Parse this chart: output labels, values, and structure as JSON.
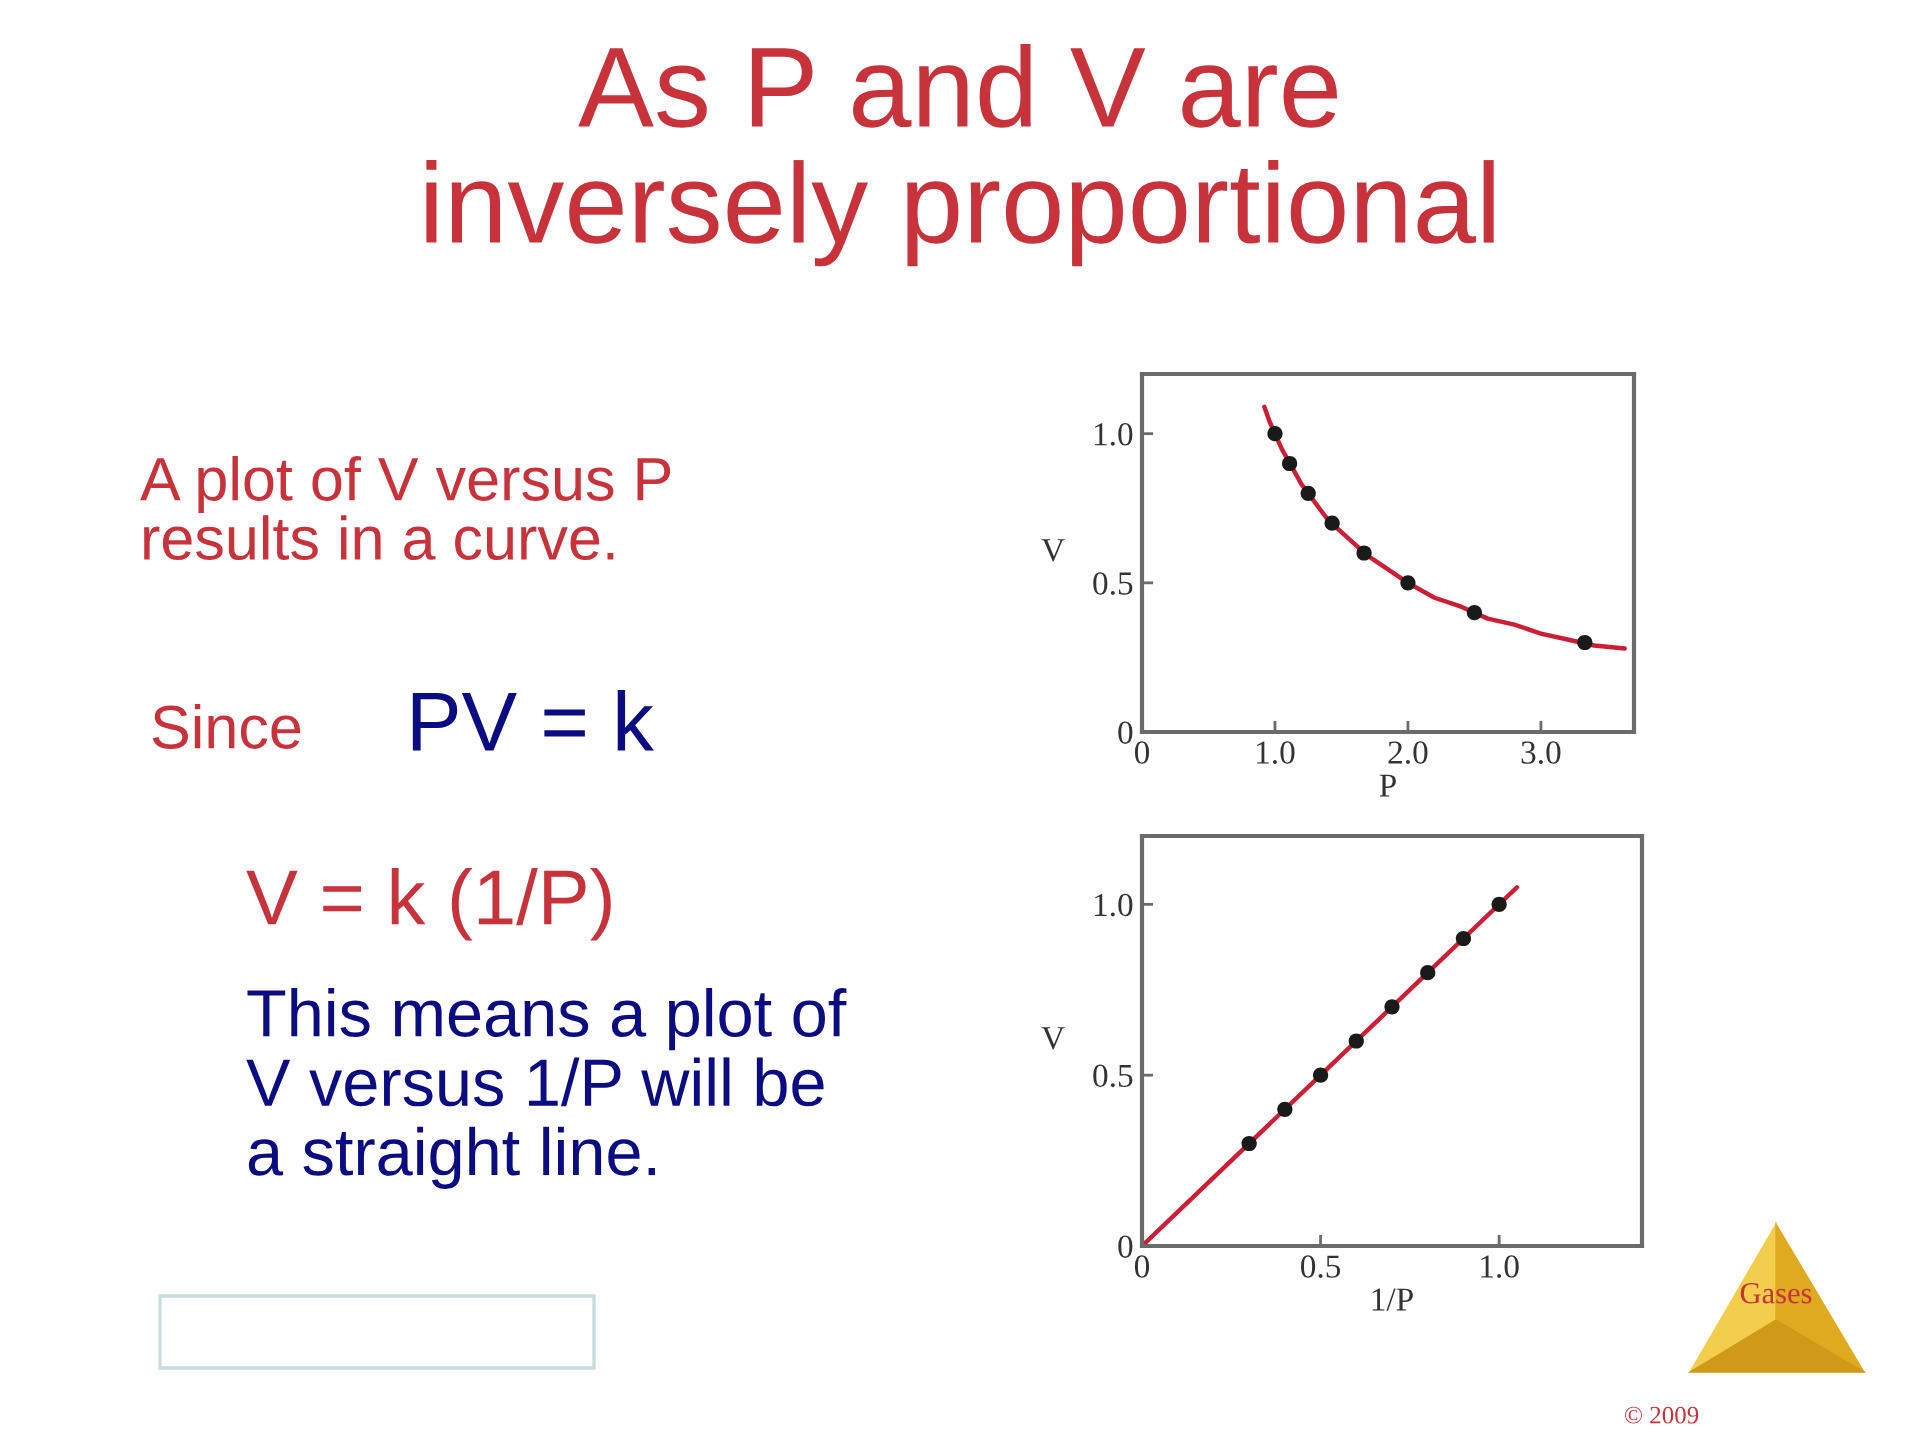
{
  "chart_data": [
    {
      "type": "other",
      "title": "As P and V are\ninversely proportional",
      "annotations": [
        "A plot of V versus P\nresults in a curve.",
        "Since",
        "PV = k",
        "V = k (1/P)",
        "This means a plot of\nV versus 1/P will be\na straight line.",
        "Gases",
        "© 2009"
      ]
    },
    {
      "type": "scatter",
      "xlabel": "P",
      "ylabel": "V",
      "xlim": [
        0,
        3.7
      ],
      "ylim": [
        0,
        1.2
      ],
      "xticks": [
        0,
        {
          "value": 1,
          "label": "1.0"
        },
        {
          "value": 2,
          "label": "2.0"
        },
        {
          "value": 3,
          "label": "3.0"
        }
      ],
      "yticks": [
        0,
        0.5,
        {
          "value": 1,
          "label": "1.0"
        }
      ],
      "series": [
        {
          "type": "line",
          "color": "#cc1f36",
          "x": [
            0.92,
            0.96,
            1.0,
            1.05,
            1.1,
            1.15,
            1.2,
            1.25,
            1.3,
            1.35,
            1.4,
            1.5,
            1.6,
            1.7,
            1.8,
            1.9,
            2.0,
            2.2,
            2.4,
            2.6,
            2.8,
            3.0,
            3.2,
            3.4,
            3.63
          ],
          "values": [
            1.09,
            1.04,
            1.0,
            0.95,
            0.91,
            0.87,
            0.83,
            0.8,
            0.77,
            0.74,
            0.71,
            0.67,
            0.63,
            0.59,
            0.56,
            0.53,
            0.5,
            0.45,
            0.42,
            0.38,
            0.36,
            0.33,
            0.31,
            0.29,
            0.28
          ]
        },
        {
          "type": "scatter",
          "color": "#1a1a1a",
          "marker": "circle",
          "x": [
            1.0,
            1.11,
            1.25,
            1.43,
            1.67,
            2.0,
            2.5,
            3.33
          ],
          "values": [
            1.0,
            0.9,
            0.8,
            0.7,
            0.6,
            0.5,
            0.4,
            0.3
          ]
        }
      ]
    },
    {
      "type": "scatter",
      "xlabel": "1/P",
      "ylabel": "V",
      "xlim": [
        0,
        1.4
      ],
      "ylim": [
        0,
        1.2
      ],
      "xticks": [
        0,
        0.5,
        {
          "value": 1,
          "label": "1.0"
        }
      ],
      "yticks": [
        0,
        0.5,
        {
          "value": 1,
          "label": "1.0"
        }
      ],
      "series": [
        {
          "type": "line",
          "color": "#cc1f36",
          "x": [
            0,
            1.05
          ],
          "values": [
            0,
            1.05
          ]
        },
        {
          "type": "scatter",
          "color": "#1a1a1a",
          "marker": "circle",
          "x": [
            0.3,
            0.4,
            0.5,
            0.6,
            0.7,
            0.8,
            0.9,
            1.0
          ],
          "values": [
            0.3,
            0.4,
            0.5,
            0.6,
            0.7,
            0.8,
            0.9,
            1.0
          ]
        }
      ]
    }
  ]
}
